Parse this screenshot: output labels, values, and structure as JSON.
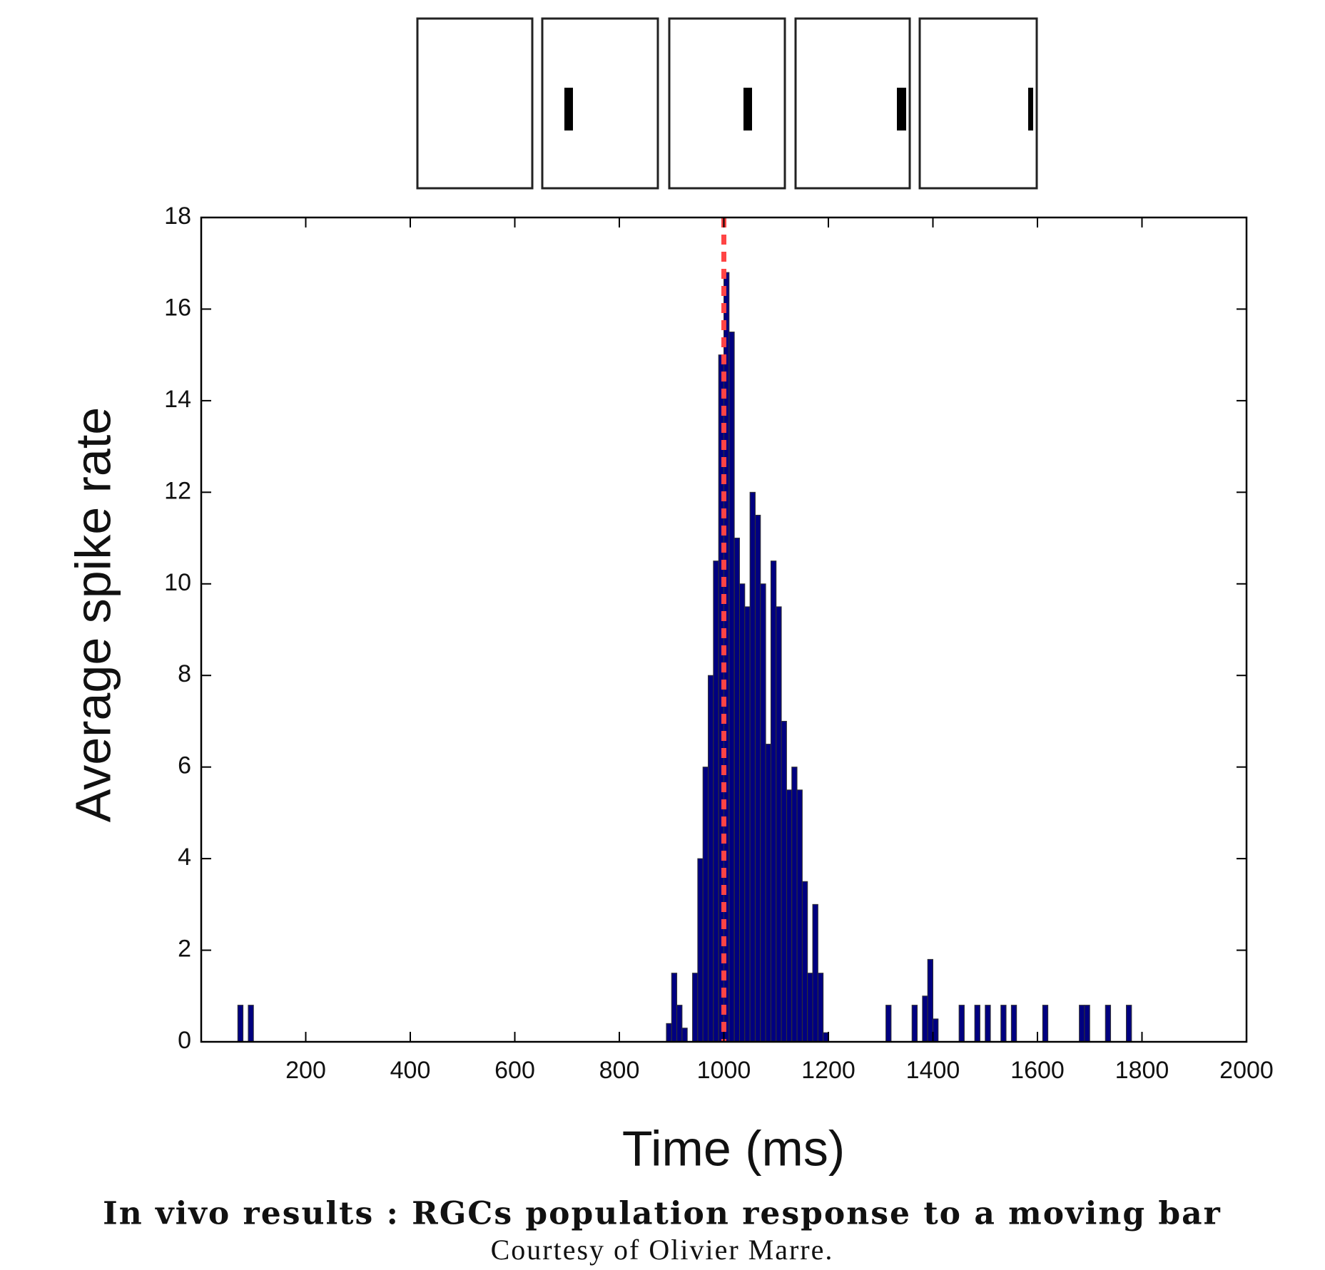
{
  "chart_data": {
    "type": "histogram",
    "y_label": "Average spike rate",
    "x_label": "Time (ms)",
    "caption": "In vivo results : RGCs population response to a moving bar",
    "credit": "Courtesy of Olivier Marre.",
    "bins": [
      60,
      70,
      80,
      90,
      100,
      890,
      900,
      910,
      920,
      930,
      940,
      950,
      960,
      970,
      980,
      990,
      1000,
      1010,
      1020,
      1030,
      1040,
      1050,
      1060,
      1070,
      1080,
      1090,
      1100,
      1110,
      1120,
      1130,
      1140,
      1150,
      1160,
      1170,
      1180,
      1190,
      1200,
      1310,
      1320,
      1360,
      1370,
      1380,
      1390,
      1400,
      1410,
      1450,
      1460,
      1480,
      1490,
      1500,
      1510,
      1530,
      1540,
      1550,
      1560,
      1610,
      1620,
      1680,
      1690,
      1700,
      1730,
      1740,
      1770,
      1780,
      1790
    ],
    "counts": [
      0,
      0.8,
      0,
      0.8,
      0,
      0.4,
      1.5,
      0.8,
      0.3,
      0,
      1.5,
      4,
      6,
      8,
      10.5,
      15,
      16.8,
      15.5,
      11,
      10,
      9.5,
      12,
      11.5,
      10,
      6.5,
      10.5,
      9.5,
      7,
      5.5,
      6,
      5.5,
      3.5,
      1.5,
      3,
      1.5,
      0.2,
      0,
      0.8,
      0,
      0.8,
      0,
      1,
      1.8,
      0.5,
      0,
      0.8,
      0,
      0.8,
      0,
      0.8,
      0,
      0.8,
      0,
      0.8,
      0,
      0.8,
      0,
      0.8,
      0.8,
      0,
      0.8,
      0,
      0.8,
      0
    ],
    "color": "#000080",
    "vline_x": 1000,
    "vline_color": "#ff4444",
    "xlim": [
      0,
      2000
    ],
    "xticks": [
      200,
      400,
      600,
      800,
      1000,
      1200,
      1400,
      1600,
      1800,
      2000
    ],
    "ylim": [
      0,
      18
    ],
    "yticks": [
      0,
      2,
      4,
      6,
      8,
      10,
      12,
      14,
      16,
      18
    ]
  }
}
